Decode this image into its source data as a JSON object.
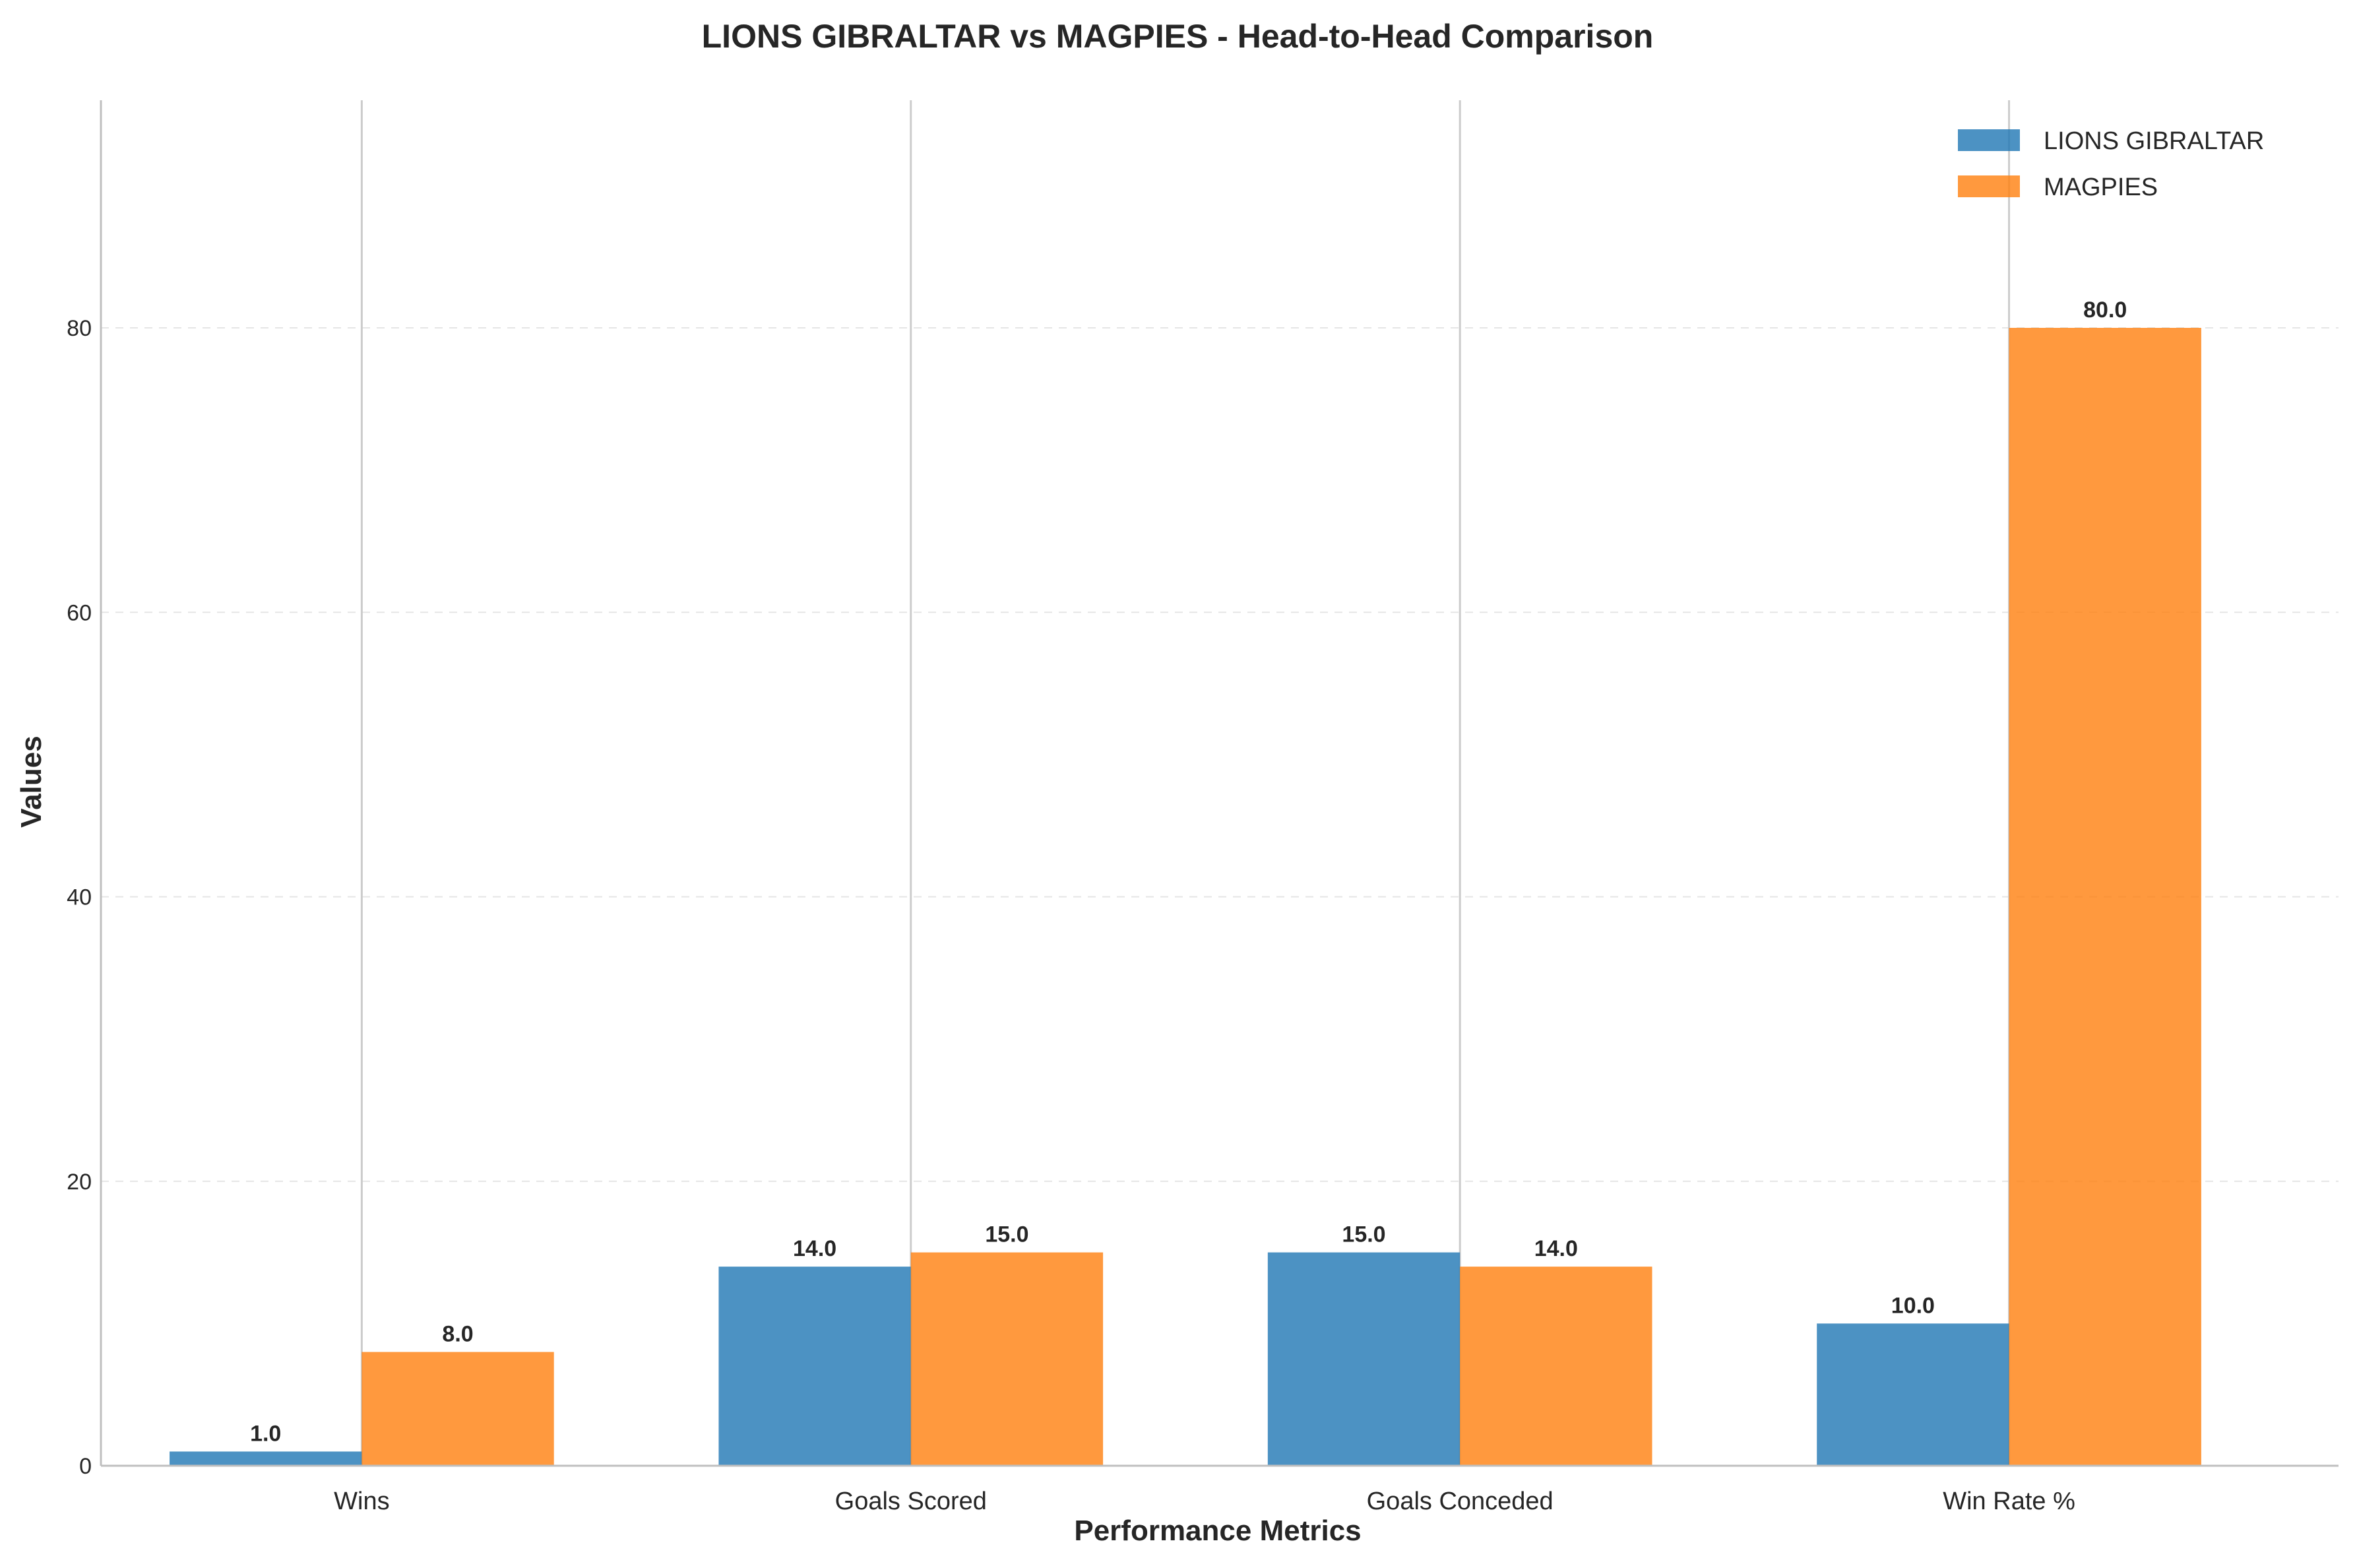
{
  "chart_data": {
    "type": "bar",
    "title": "LIONS GIBRALTAR vs MAGPIES - Head-to-Head Comparison",
    "xlabel": "Performance Metrics",
    "ylabel": "Values",
    "categories": [
      "Wins",
      "Goals Scored",
      "Goals Conceded",
      "Win Rate %"
    ],
    "series": [
      {
        "name": "LIONS GIBRALTAR",
        "values": [
          1.0,
          14.0,
          15.0,
          10.0
        ],
        "color": "#1f77b4"
      },
      {
        "name": "MAGPIES",
        "values": [
          8.0,
          15.0,
          14.0,
          80.0
        ],
        "color": "#ff7f0e"
      }
    ],
    "value_labels": [
      [
        "1.0",
        "14.0",
        "15.0",
        "10.0"
      ],
      [
        "8.0",
        "15.0",
        "14.0",
        "80.0"
      ]
    ],
    "ylim": [
      0,
      96
    ],
    "yticks": [
      0,
      20,
      40,
      60,
      80
    ],
    "grid": "y-dashed",
    "legend": "top-right"
  }
}
